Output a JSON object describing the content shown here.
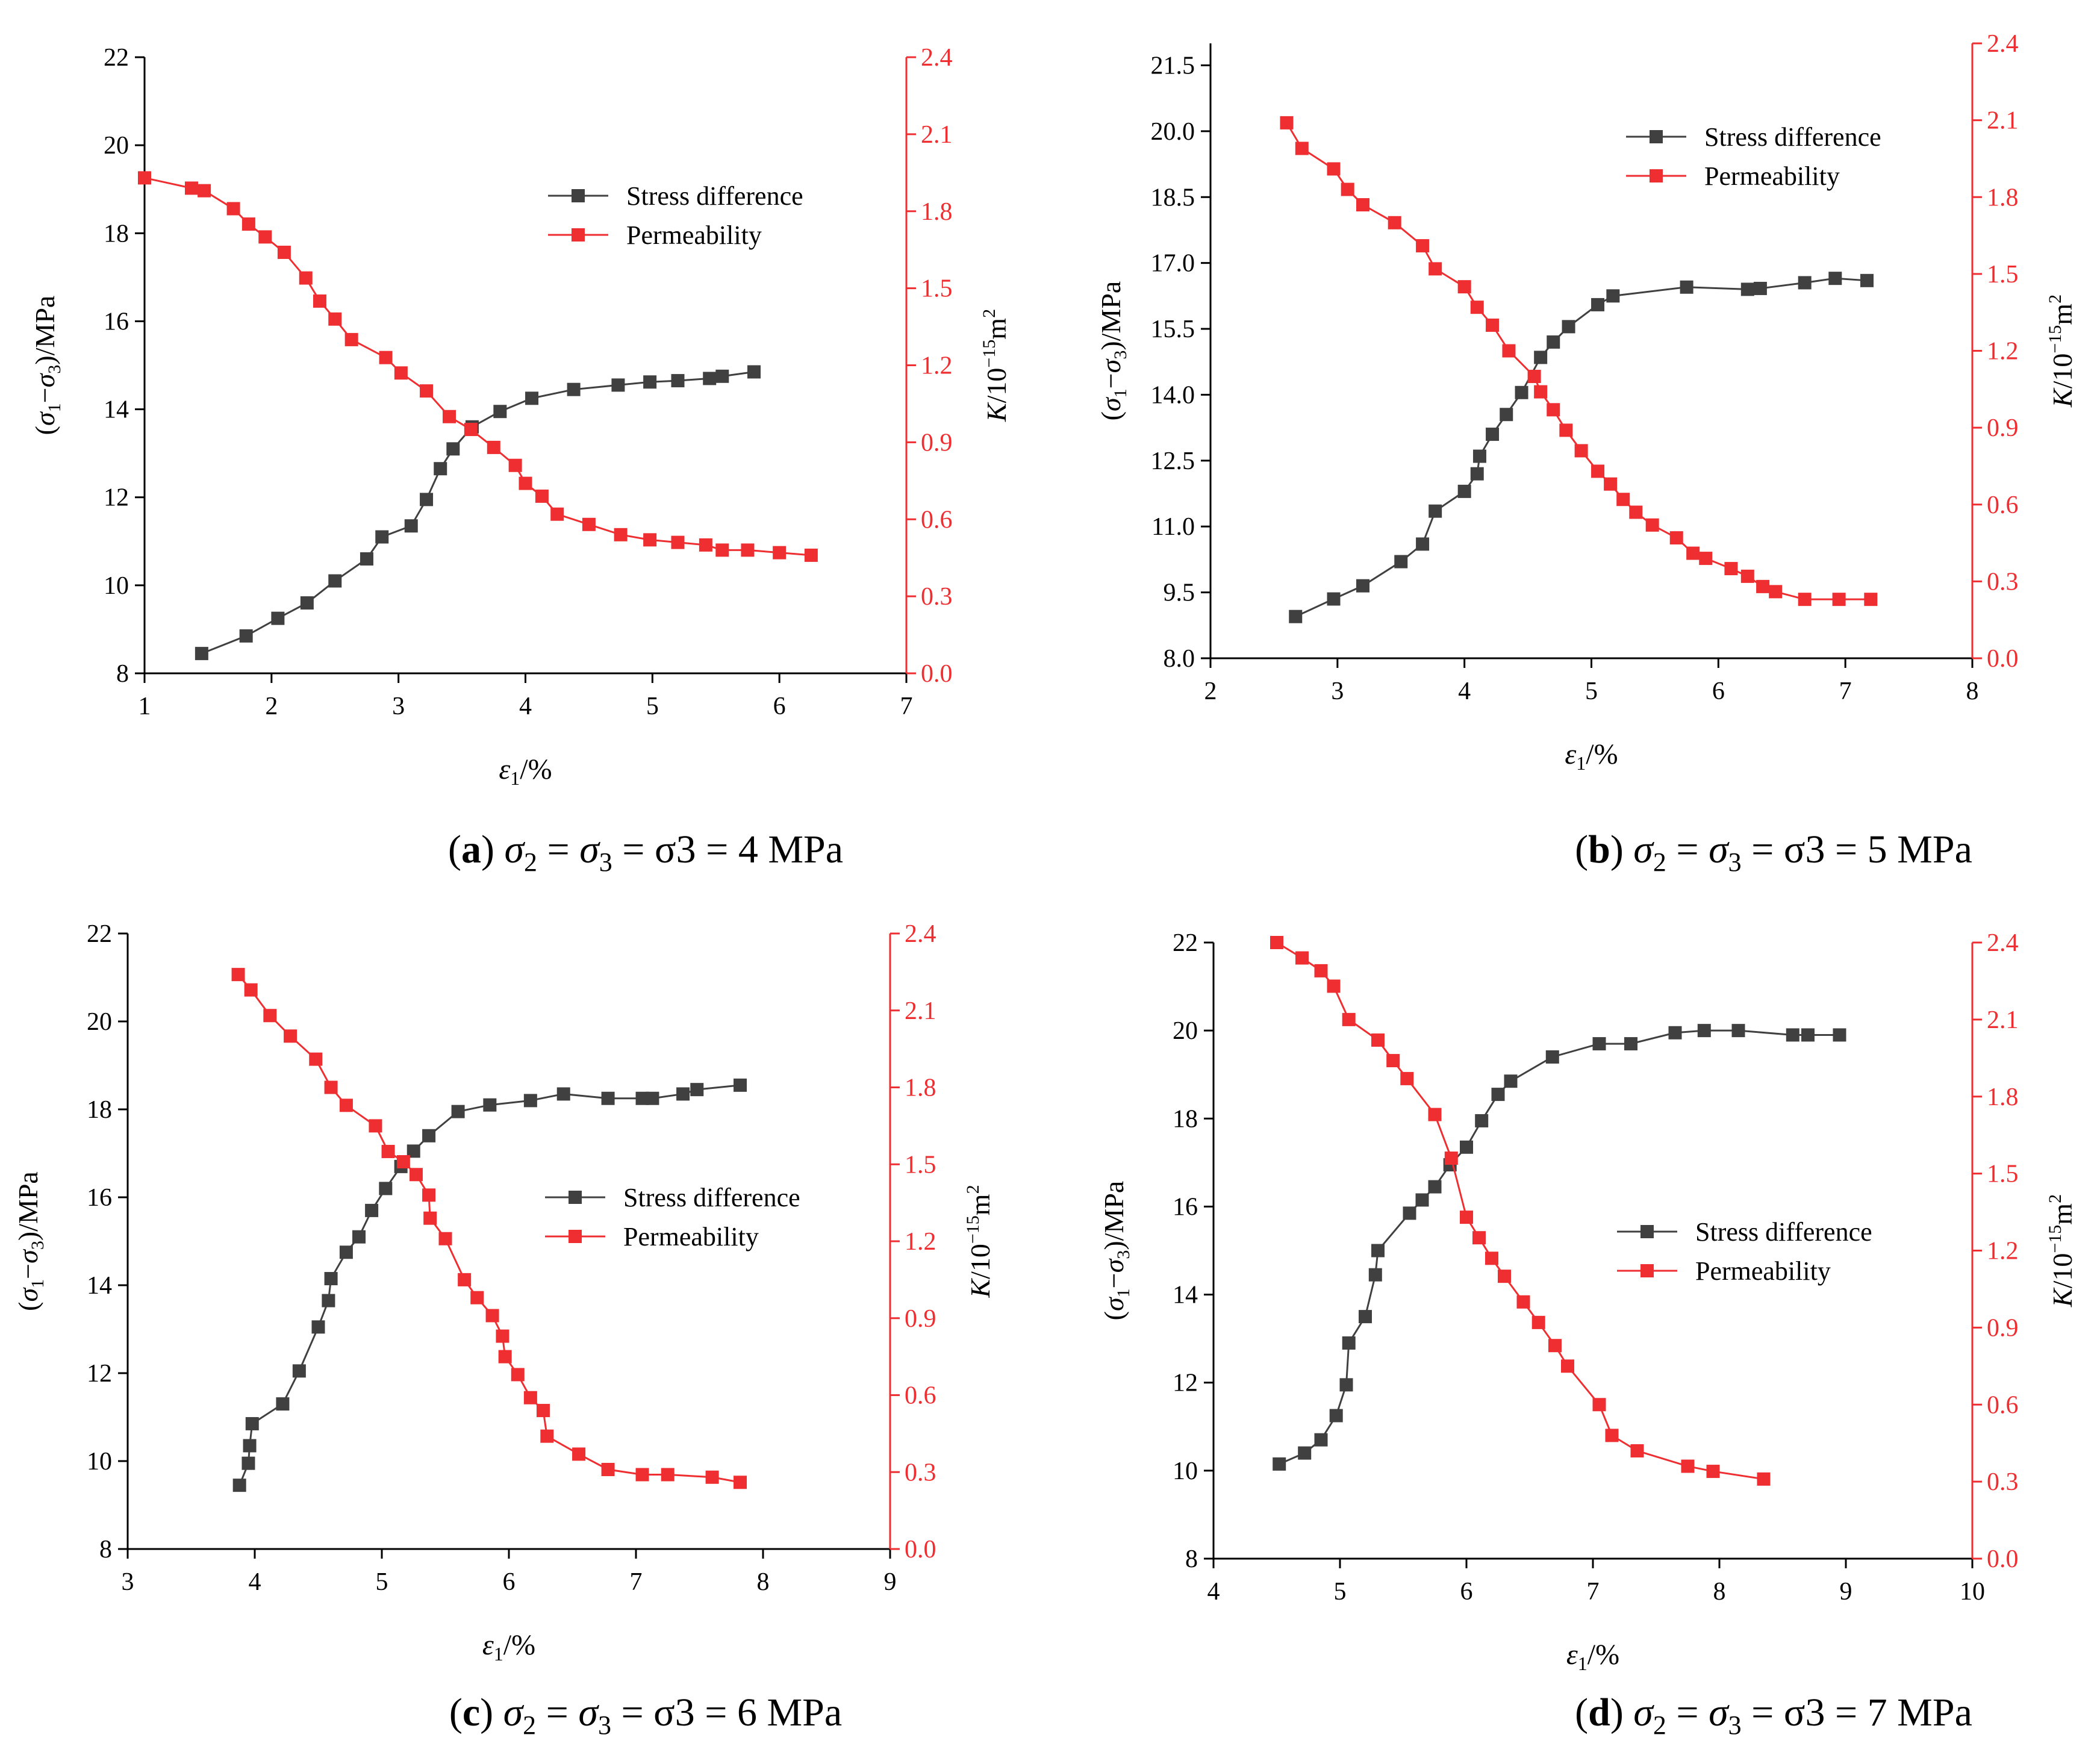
{
  "colors": {
    "stress": "#404040",
    "permeability": "#ee2e30",
    "axis": "#000000"
  },
  "chart_data": [
    {
      "id": "a",
      "type": "line",
      "label_letter": "a",
      "caption": "σ2 = σ3 = 4 MPa",
      "xlabel": "ε1/%",
      "ylabel_left": "(σ1−σ3)/MPa",
      "ylabel_right": "K/10−15m2",
      "xlim": [
        1,
        7
      ],
      "xticks": [
        1,
        2,
        3,
        4,
        5,
        6,
        7
      ],
      "ylim_left": [
        8,
        22
      ],
      "yticks_left": [
        "8",
        "10",
        "12",
        "14",
        "16",
        "18",
        "20",
        "22"
      ],
      "ylim_right": [
        0,
        2.4
      ],
      "yticks_right": [
        "0.0",
        "0.3",
        "0.6",
        "0.9",
        "1.2",
        "1.5",
        "1.8",
        "2.1",
        "2.4"
      ],
      "legend": [
        "Stress difference",
        "Permeability"
      ],
      "legend_position": "upper-right",
      "series": [
        {
          "name": "Stress difference",
          "axis": "left",
          "x": [
            1.45,
            1.8,
            2.05,
            2.28,
            2.5,
            2.75,
            2.87,
            3.1,
            3.22,
            3.33,
            3.43,
            3.58,
            3.8,
            4.05,
            4.38,
            4.73,
            4.98,
            5.2,
            5.45,
            5.55,
            5.8
          ],
          "y": [
            8.45,
            8.85,
            9.25,
            9.6,
            10.1,
            10.6,
            11.1,
            11.35,
            11.95,
            12.65,
            13.1,
            13.6,
            13.95,
            14.25,
            14.45,
            14.55,
            14.62,
            14.65,
            14.7,
            14.75,
            14.85
          ]
        },
        {
          "name": "Permeability",
          "axis": "right",
          "x": [
            1.0,
            1.37,
            1.47,
            1.7,
            1.82,
            1.95,
            2.1,
            2.27,
            2.38,
            2.5,
            2.63,
            2.9,
            3.02,
            3.22,
            3.4,
            3.57,
            3.75,
            3.92,
            4.0,
            4.13,
            4.25,
            4.5,
            4.75,
            4.98,
            5.2,
            5.42,
            5.55,
            5.75,
            6.0,
            6.25
          ],
          "y": [
            1.93,
            1.89,
            1.88,
            1.81,
            1.75,
            1.7,
            1.64,
            1.54,
            1.45,
            1.38,
            1.3,
            1.23,
            1.17,
            1.1,
            1.0,
            0.95,
            0.88,
            0.81,
            0.74,
            0.69,
            0.62,
            0.58,
            0.54,
            0.52,
            0.51,
            0.5,
            0.48,
            0.48,
            0.47,
            0.46
          ]
        }
      ]
    },
    {
      "id": "b",
      "type": "line",
      "label_letter": "b",
      "caption": "σ2 = σ3 = 5 MPa",
      "xlabel": "ε1/%",
      "ylabel_left": "(σ1−σ3)/MPa",
      "ylabel_right": "K/10−15m2",
      "xlim": [
        2,
        8
      ],
      "xticks": [
        2,
        3,
        4,
        5,
        6,
        7,
        8
      ],
      "ylim_left": [
        8,
        22
      ],
      "yticks_left": [
        "8.0",
        "9.5",
        "11.0",
        "12.5",
        "14.0",
        "15.5",
        "17.0",
        "18.5",
        "20.0",
        "21.5"
      ],
      "ylim_right": [
        0,
        2.4
      ],
      "yticks_right": [
        "0.0",
        "0.3",
        "0.6",
        "0.9",
        "1.2",
        "1.5",
        "1.8",
        "2.1",
        "2.4"
      ],
      "legend": [
        "Stress difference",
        "Permeability"
      ],
      "legend_position": "upper-right",
      "series": [
        {
          "name": "Stress difference",
          "axis": "left",
          "x": [
            2.67,
            2.97,
            3.2,
            3.5,
            3.67,
            3.77,
            4.0,
            4.1,
            4.12,
            4.22,
            4.33,
            4.45,
            4.6,
            4.7,
            4.82,
            5.05,
            5.17,
            5.75,
            6.23,
            6.33,
            6.68,
            6.92,
            7.17
          ],
          "y": [
            8.95,
            9.35,
            9.65,
            10.2,
            10.6,
            11.35,
            11.8,
            12.2,
            12.6,
            13.1,
            13.55,
            14.05,
            14.85,
            15.2,
            15.55,
            16.05,
            16.25,
            16.45,
            16.4,
            16.42,
            16.55,
            16.65,
            16.6
          ]
        },
        {
          "name": "Permeability",
          "axis": "right",
          "x": [
            2.6,
            2.72,
            2.97,
            3.08,
            3.2,
            3.45,
            3.67,
            3.77,
            4.0,
            4.1,
            4.22,
            4.35,
            4.55,
            4.6,
            4.7,
            4.8,
            4.92,
            5.05,
            5.15,
            5.25,
            5.35,
            5.48,
            5.67,
            5.8,
            5.9,
            6.1,
            6.23,
            6.35,
            6.45,
            6.68,
            6.95,
            7.2
          ],
          "y": [
            2.09,
            1.99,
            1.91,
            1.83,
            1.77,
            1.7,
            1.61,
            1.52,
            1.45,
            1.37,
            1.3,
            1.2,
            1.1,
            1.04,
            0.97,
            0.89,
            0.81,
            0.73,
            0.68,
            0.62,
            0.57,
            0.52,
            0.47,
            0.41,
            0.39,
            0.35,
            0.32,
            0.28,
            0.26,
            0.23,
            0.23,
            0.23
          ]
        }
      ]
    },
    {
      "id": "c",
      "type": "line",
      "label_letter": "c",
      "caption": "σ2 = σ3 = 6 MPa",
      "xlabel": "ε1/%",
      "ylabel_left": "(σ1−σ3)/MPa",
      "ylabel_right": "K/10−15m2",
      "xlim": [
        3,
        9
      ],
      "xticks": [
        3,
        4,
        5,
        6,
        7,
        8,
        9
      ],
      "ylim_left": [
        8,
        22
      ],
      "yticks_left": [
        "8",
        "10",
        "12",
        "14",
        "16",
        "18",
        "20",
        "22"
      ],
      "ylim_right": [
        0,
        2.4
      ],
      "yticks_right": [
        "0.0",
        "0.3",
        "0.6",
        "0.9",
        "1.2",
        "1.5",
        "1.8",
        "2.1",
        "2.4"
      ],
      "legend": [
        "Stress difference",
        "Permeability"
      ],
      "legend_position": "center-right",
      "series": [
        {
          "name": "Stress difference",
          "axis": "left",
          "x": [
            3.88,
            3.95,
            3.96,
            3.98,
            4.22,
            4.35,
            4.5,
            4.58,
            4.6,
            4.72,
            4.82,
            4.92,
            5.03,
            5.15,
            5.25,
            5.37,
            5.6,
            5.85,
            6.17,
            6.43,
            6.78,
            7.05,
            7.13,
            7.37,
            7.48,
            7.82
          ],
          "y": [
            9.45,
            9.95,
            10.35,
            10.85,
            11.3,
            12.05,
            13.05,
            13.65,
            14.15,
            14.75,
            15.1,
            15.7,
            16.2,
            16.7,
            17.05,
            17.4,
            17.95,
            18.1,
            18.2,
            18.35,
            18.25,
            18.25,
            18.25,
            18.35,
            18.45,
            18.55
          ]
        },
        {
          "name": "Permeability",
          "axis": "right",
          "x": [
            3.87,
            3.97,
            4.12,
            4.28,
            4.48,
            4.6,
            4.72,
            4.95,
            5.05,
            5.17,
            5.27,
            5.37,
            5.38,
            5.5,
            5.65,
            5.75,
            5.87,
            5.95,
            5.97,
            6.07,
            6.17,
            6.27,
            6.3,
            6.55,
            6.78,
            7.05,
            7.25,
            7.6,
            7.82
          ],
          "y": [
            2.24,
            2.18,
            2.08,
            2.0,
            1.91,
            1.8,
            1.73,
            1.65,
            1.55,
            1.51,
            1.46,
            1.38,
            1.29,
            1.21,
            1.05,
            0.98,
            0.91,
            0.83,
            0.75,
            0.68,
            0.59,
            0.54,
            0.44,
            0.37,
            0.31,
            0.29,
            0.29,
            0.28,
            0.26
          ]
        }
      ]
    },
    {
      "id": "d",
      "type": "line",
      "label_letter": "d",
      "caption": "σ2 = σ3 = 7 MPa",
      "xlabel": "ε1/%",
      "ylabel_left": "(σ1−σ3)/MPa",
      "ylabel_right": "K/10−15m2",
      "xlim": [
        4,
        10
      ],
      "xticks": [
        4,
        5,
        6,
        7,
        8,
        9,
        10
      ],
      "ylim_left": [
        8,
        22
      ],
      "yticks_left": [
        "8",
        "10",
        "12",
        "14",
        "16",
        "18",
        "20",
        "22"
      ],
      "ylim_right": [
        0,
        2.4
      ],
      "yticks_right": [
        "0.0",
        "0.3",
        "0.6",
        "0.9",
        "1.2",
        "1.5",
        "1.8",
        "2.1",
        "2.4"
      ],
      "legend": [
        "Stress difference",
        "Permeability"
      ],
      "legend_position": "center-right",
      "series": [
        {
          "name": "Stress difference",
          "axis": "left",
          "x": [
            4.52,
            4.72,
            4.85,
            4.97,
            5.05,
            5.07,
            5.2,
            5.28,
            5.3,
            5.55,
            5.65,
            5.75,
            5.87,
            6.0,
            6.12,
            6.25,
            6.35,
            6.68,
            7.05,
            7.3,
            7.65,
            7.88,
            8.15,
            8.58,
            8.7,
            8.95
          ],
          "y": [
            10.15,
            10.4,
            10.7,
            11.25,
            11.95,
            12.9,
            13.5,
            14.45,
            15.0,
            15.85,
            16.15,
            16.45,
            16.95,
            17.35,
            17.95,
            18.55,
            18.85,
            19.4,
            19.7,
            19.7,
            19.95,
            20.0,
            20.0,
            19.9,
            19.9,
            19.9
          ]
        },
        {
          "name": "Permeability",
          "axis": "right",
          "x": [
            4.5,
            4.7,
            4.85,
            4.95,
            5.07,
            5.3,
            5.42,
            5.53,
            5.75,
            5.88,
            6.0,
            6.1,
            6.2,
            6.3,
            6.45,
            6.57,
            6.7,
            6.8,
            7.05,
            7.15,
            7.35,
            7.75,
            7.95,
            8.35
          ],
          "y": [
            2.4,
            2.34,
            2.29,
            2.23,
            2.1,
            2.02,
            1.94,
            1.87,
            1.73,
            1.56,
            1.33,
            1.25,
            1.17,
            1.1,
            1.0,
            0.92,
            0.83,
            0.75,
            0.6,
            0.48,
            0.42,
            0.36,
            0.34,
            0.31
          ]
        }
      ]
    }
  ]
}
